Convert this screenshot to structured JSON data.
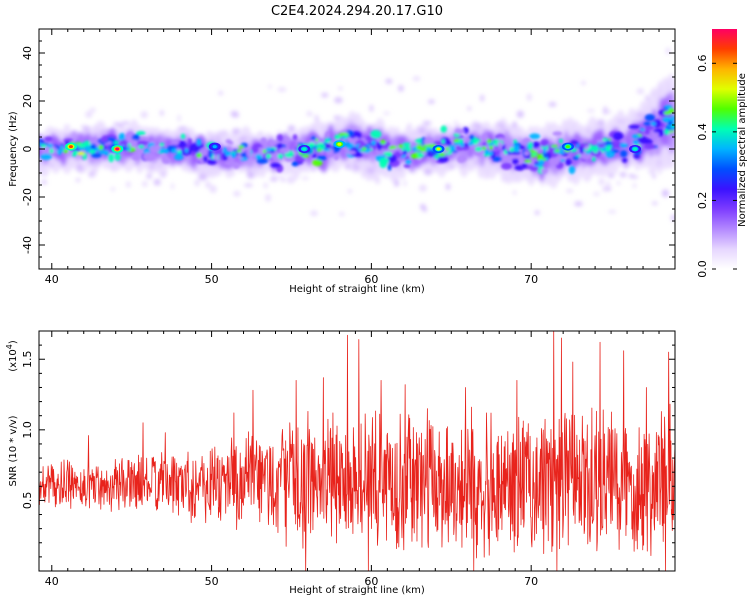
{
  "chart_data": [
    {
      "type": "heatmap",
      "title": "C2E4.2024.294.20.17.G10",
      "xlabel": "Height of straight line (km)",
      "ylabel": "Frequency (Hz)",
      "xlim": [
        39.2,
        79.0
      ],
      "ylim": [
        -50,
        50
      ],
      "xticks": [
        40,
        50,
        60,
        70
      ],
      "yticks": [
        -40,
        -20,
        0,
        20,
        40
      ],
      "colorbar": {
        "label": "Normalized spectral amplitude",
        "range": [
          0.0,
          0.7
        ],
        "ticks": [
          0.0,
          0.2,
          0.4,
          0.6
        ],
        "colormap": [
          "#ffffff",
          "#e6d6ff",
          "#b388ff",
          "#7d3cff",
          "#3a12ff",
          "#0050ff",
          "#00b4ff",
          "#00ffb4",
          "#50ff00",
          "#e0ff00",
          "#ffb400",
          "#ff3c00",
          "#ff0064"
        ]
      },
      "band_profile": [
        {
          "x": 39.5,
          "center": 0.0,
          "halfwidth": 5.0
        },
        {
          "x": 45.0,
          "center": 1.0,
          "halfwidth": 5.5
        },
        {
          "x": 51.0,
          "center": -2.0,
          "halfwidth": 5.0
        },
        {
          "x": 55.0,
          "center": -1.0,
          "halfwidth": 6.0
        },
        {
          "x": 58.5,
          "center": 3.0,
          "halfwidth": 7.0
        },
        {
          "x": 62.0,
          "center": -2.0,
          "halfwidth": 6.0
        },
        {
          "x": 66.0,
          "center": 2.0,
          "halfwidth": 6.0
        },
        {
          "x": 71.0,
          "center": -3.0,
          "halfwidth": 7.5
        },
        {
          "x": 76.0,
          "center": 2.0,
          "halfwidth": 6.5
        },
        {
          "x": 78.8,
          "center": 12.0,
          "halfwidth": 12.0
        }
      ],
      "peaks": [
        {
          "x": 41.2,
          "y": 1.0,
          "amplitude": 0.65
        },
        {
          "x": 44.1,
          "y": 0.0,
          "amplitude": 0.68
        },
        {
          "x": 50.2,
          "y": 1.0,
          "amplitude": 0.35
        },
        {
          "x": 55.8,
          "y": 0.0,
          "amplitude": 0.4
        },
        {
          "x": 58.0,
          "y": 2.0,
          "amplitude": 0.55
        },
        {
          "x": 64.2,
          "y": 0.0,
          "amplitude": 0.5
        },
        {
          "x": 72.3,
          "y": 1.0,
          "amplitude": 0.45
        },
        {
          "x": 76.5,
          "y": 0.0,
          "amplitude": 0.4
        }
      ]
    },
    {
      "type": "line",
      "xlabel": "Height of straight line (km)",
      "ylabel": "SNR (10 * v/v)",
      "y_multiplier": "(x10",
      "y_multiplier_exp": "4",
      "y_multiplier_close": ")",
      "xlim": [
        39.2,
        79.0
      ],
      "ylim": [
        0.0,
        1.7
      ],
      "xticks": [
        40,
        50,
        60,
        70
      ],
      "yticks": [
        0.5,
        1.0,
        1.5
      ],
      "ytick_labels": [
        "0.5",
        "1.0",
        "1.5"
      ],
      "series": [
        {
          "color": "#e8231c",
          "x_start": 39.2,
          "x_end": 79.0,
          "mean_profile": [
            {
              "x": 39.2,
              "y": 0.6
            },
            {
              "x": 46.0,
              "y": 0.62
            },
            {
              "x": 52.0,
              "y": 0.63
            },
            {
              "x": 58.0,
              "y": 0.64
            },
            {
              "x": 64.0,
              "y": 0.63
            },
            {
              "x": 70.0,
              "y": 0.62
            },
            {
              "x": 79.0,
              "y": 0.62
            }
          ],
          "amplitude_profile": [
            {
              "x": 39.2,
              "y": 0.15
            },
            {
              "x": 47.0,
              "y": 0.2
            },
            {
              "x": 52.0,
              "y": 0.35
            },
            {
              "x": 58.0,
              "y": 0.45
            },
            {
              "x": 66.0,
              "y": 0.45
            },
            {
              "x": 72.0,
              "y": 0.5
            },
            {
              "x": 79.0,
              "y": 0.5
            }
          ],
          "spikes": [
            {
              "x": 42.3,
              "y": 0.96
            },
            {
              "x": 45.7,
              "y": 1.05
            },
            {
              "x": 47.1,
              "y": 0.98
            },
            {
              "x": 51.4,
              "y": 1.12
            },
            {
              "x": 52.6,
              "y": 1.28
            },
            {
              "x": 54.9,
              "y": 1.05
            },
            {
              "x": 55.3,
              "y": 1.35
            },
            {
              "x": 57.0,
              "y": 1.37
            },
            {
              "x": 57.6,
              "y": 1.12
            },
            {
              "x": 58.5,
              "y": 1.67
            },
            {
              "x": 59.2,
              "y": 1.64
            },
            {
              "x": 60.6,
              "y": 1.35
            },
            {
              "x": 62.1,
              "y": 1.32
            },
            {
              "x": 63.5,
              "y": 1.15
            },
            {
              "x": 65.9,
              "y": 1.3
            },
            {
              "x": 67.2,
              "y": 1.12
            },
            {
              "x": 69.1,
              "y": 1.35
            },
            {
              "x": 71.4,
              "y": 1.7
            },
            {
              "x": 71.9,
              "y": 1.65
            },
            {
              "x": 72.6,
              "y": 1.48
            },
            {
              "x": 74.3,
              "y": 1.62
            },
            {
              "x": 75.8,
              "y": 1.56
            },
            {
              "x": 77.2,
              "y": 1.3
            },
            {
              "x": 78.6,
              "y": 1.55
            }
          ],
          "dips": [
            {
              "x": 55.9,
              "y": 0.0
            },
            {
              "x": 59.8,
              "y": 0.0
            },
            {
              "x": 66.4,
              "y": 0.0
            },
            {
              "x": 71.6,
              "y": 0.0
            },
            {
              "x": 78.4,
              "y": 0.0
            }
          ]
        }
      ]
    }
  ]
}
